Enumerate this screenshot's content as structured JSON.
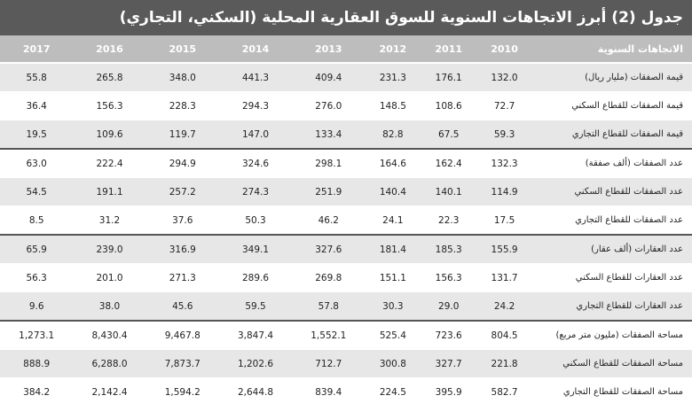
{
  "title": "جدول (2) أبرز الاتجاهات السنوية للسوق العقارية المحلية (السكني، التجاري)",
  "header": {
    "label": "الاتجاهات السنوية",
    "years": [
      "2010",
      "2011",
      "2012",
      "2013",
      "2014",
      "2015",
      "2016",
      "2017"
    ]
  },
  "rows": [
    {
      "label": "قيمة الصفقات (مليار ريال)",
      "values": [
        "132.0",
        "176.1",
        "231.3",
        "409.4",
        "441.3",
        "348.0",
        "265.8",
        "55.8"
      ]
    },
    {
      "label": "قيمة الصفقات للقطاع السكني",
      "values": [
        "72.7",
        "108.6",
        "148.5",
        "276.0",
        "294.3",
        "228.3",
        "156.3",
        "36.4"
      ]
    },
    {
      "label": "قيمة الصفقات للقطاع التجاري",
      "values": [
        "59.3",
        "67.5",
        "82.8",
        "133.4",
        "147.0",
        "119.7",
        "109.6",
        "19.5"
      ]
    },
    {
      "label": "عدد الصفقات (ألف صفقة)",
      "values": [
        "132.3",
        "162.4",
        "164.6",
        "298.1",
        "324.6",
        "294.9",
        "222.4",
        "63.0"
      ]
    },
    {
      "label": "عدد الصفقات للقطاع السكني",
      "values": [
        "114.9",
        "140.1",
        "140.4",
        "251.9",
        "274.3",
        "257.2",
        "191.1",
        "54.5"
      ]
    },
    {
      "label": "عدد الصفقات للقطاع التجاري",
      "values": [
        "17.5",
        "22.3",
        "24.1",
        "46.2",
        "50.3",
        "37.6",
        "31.2",
        "8.5"
      ]
    },
    {
      "label": "عدد العقارات (ألف عقار)",
      "values": [
        "155.9",
        "185.3",
        "181.4",
        "327.6",
        "349.1",
        "316.9",
        "239.0",
        "65.9"
      ]
    },
    {
      "label": "عدد العقارات للقطاع السكني",
      "values": [
        "131.7",
        "156.3",
        "151.1",
        "269.8",
        "289.6",
        "271.3",
        "201.0",
        "56.3"
      ]
    },
    {
      "label": "عدد العقارات للقطاع التجاري",
      "values": [
        "24.2",
        "29.0",
        "30.3",
        "57.8",
        "59.5",
        "45.6",
        "38.0",
        "9.6"
      ]
    },
    {
      "label": "مساحة الصفقات (مليون متر مربع)",
      "values": [
        "804.5",
        "723.6",
        "525.4",
        "1,552.1",
        "3,847.4",
        "9,467.8",
        "8,430.4",
        "1,273.1"
      ]
    },
    {
      "label": "مساحة الصفقات للقطاع السكني",
      "values": [
        "221.8",
        "327.7",
        "300.8",
        "712.7",
        "1,202.6",
        "7,873.7",
        "6,288.0",
        "888.9"
      ]
    },
    {
      "label": "مساحة الصفقات للقطاع التجاري",
      "values": [
        "582.7",
        "395.9",
        "224.5",
        "839.4",
        "2,644.8",
        "1,594.2",
        "2,142.4",
        "384.2"
      ]
    }
  ]
}
